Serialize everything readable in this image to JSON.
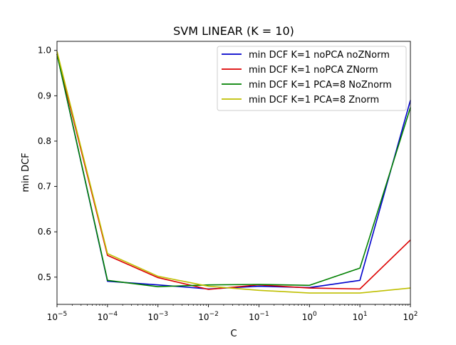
{
  "chart_data": {
    "type": "line",
    "title": "SVM LINEAR (K = 10)",
    "xlabel": "C",
    "ylabel": "min DCF",
    "x_scale": "log",
    "xlim": [
      1e-05,
      100
    ],
    "ylim": [
      0.44,
      1.02
    ],
    "x": [
      1e-05,
      0.0001,
      0.001,
      0.01,
      0.1,
      1,
      10,
      100
    ],
    "x_tick_labels": [
      {
        "base": "10",
        "exp": "−5"
      },
      {
        "base": "10",
        "exp": "−4"
      },
      {
        "base": "10",
        "exp": "−3"
      },
      {
        "base": "10",
        "exp": "−2"
      },
      {
        "base": "10",
        "exp": "−1"
      },
      {
        "base": "10",
        "exp": "0"
      },
      {
        "base": "10",
        "exp": "1"
      },
      {
        "base": "10",
        "exp": "2"
      }
    ],
    "y_ticks": [
      0.5,
      0.6,
      0.7,
      0.8,
      0.9,
      1.0
    ],
    "y_tick_labels": [
      "0.5",
      "0.6",
      "0.7",
      "0.8",
      "0.9",
      "1.0"
    ],
    "grid": false,
    "legend_position": "top-right",
    "series": [
      {
        "name": "min DCF K=1 noPCA noZNorm",
        "color": "#0000cc",
        "values": [
          0.992,
          0.491,
          0.483,
          0.474,
          0.48,
          0.477,
          0.493,
          0.89
        ]
      },
      {
        "name": "min DCF K=1 noPCA ZNorm",
        "color": "#dd0000",
        "values": [
          0.992,
          0.548,
          0.499,
          0.473,
          0.483,
          0.476,
          0.474,
          0.582
        ]
      },
      {
        "name": "min DCF K=1 PCA=8 NoZnorm",
        "color": "#008000",
        "values": [
          0.992,
          0.493,
          0.479,
          0.483,
          0.484,
          0.482,
          0.52,
          0.874
        ]
      },
      {
        "name": "min DCF K=1 PCA=8 Znorm",
        "color": "#bfbf00",
        "values": [
          0.998,
          0.552,
          0.502,
          0.48,
          0.471,
          0.465,
          0.465,
          0.476
        ]
      }
    ]
  }
}
